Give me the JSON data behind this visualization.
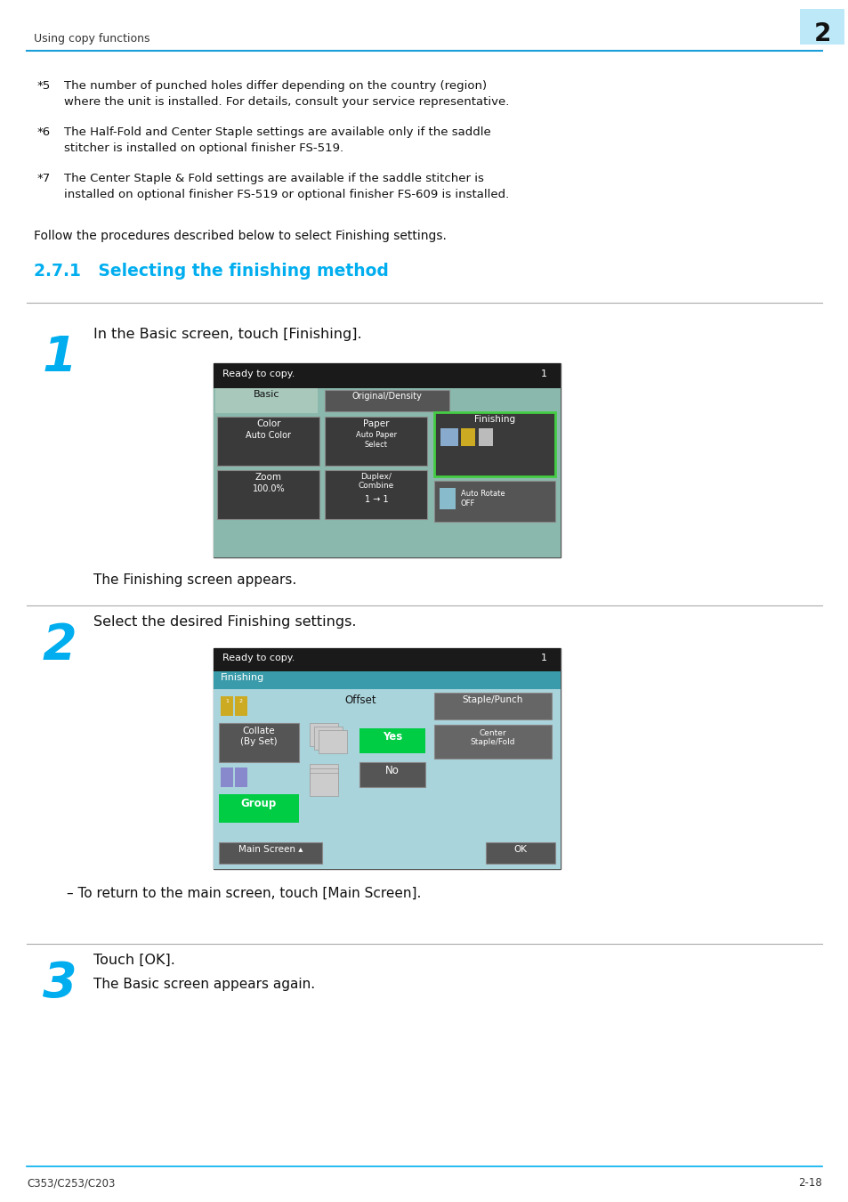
{
  "page_title": "Using copy functions",
  "page_number": "2",
  "footer_left": "C353/C253/C203",
  "footer_right": "2-18",
  "section_title": "2.7.1   Selecting the finishing method",
  "follow_text": "Follow the procedures described below to select Finishing settings.",
  "steps": [
    {
      "number": "1",
      "instruction": "In the Basic screen, touch [Finishing].",
      "sub_text": "The Finishing screen appears."
    },
    {
      "number": "2",
      "instruction": "Select the desired Finishing settings.",
      "sub_text": "– To return to the main screen, touch [Main Screen]."
    },
    {
      "number": "3",
      "instruction": "Touch [OK].",
      "sub_text": "The Basic screen appears again."
    }
  ],
  "cyan": "#00AEEF",
  "bg_color": "#FFFFFF",
  "header_line_color": "#1B9FD9",
  "screen_teal_bg": "#8BB8AC",
  "screen_dark": "#1A1A1A",
  "screen_btn_dark": "#3D3D3D",
  "screen_btn_mid": "#555555",
  "screen_green": "#00CC44",
  "screen_teal_bar": "#3A9BAA",
  "screen2_bg": "#AAD4DC",
  "finishing_border": "#44CC44"
}
